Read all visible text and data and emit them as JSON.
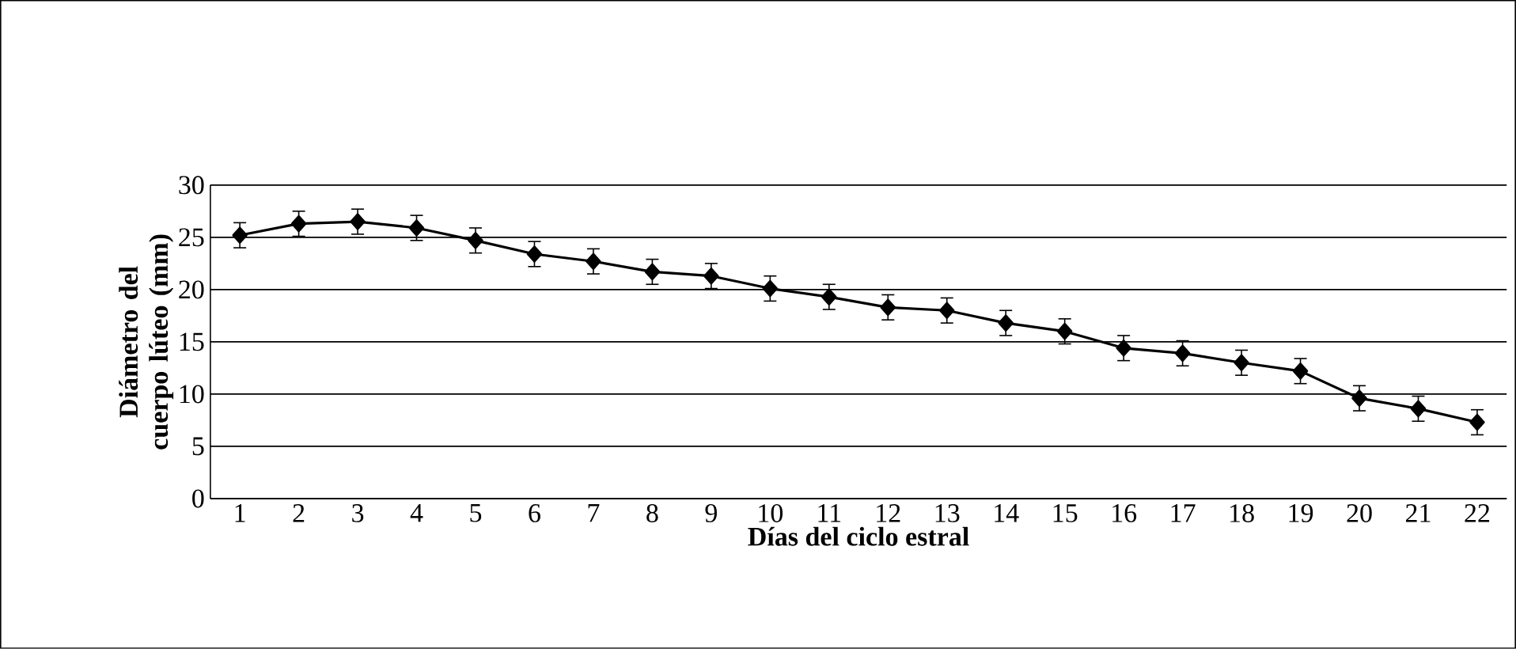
{
  "chart_data": {
    "type": "line",
    "xlabel": "Días del ciclo estral",
    "ylabel": "Diámetro del cuerpo lúteo (mm)",
    "categories": [
      "1",
      "2",
      "3",
      "4",
      "5",
      "6",
      "7",
      "8",
      "9",
      "10",
      "11",
      "12",
      "13",
      "14",
      "15",
      "16",
      "17",
      "18",
      "19",
      "20",
      "21",
      "22"
    ],
    "values": [
      25.2,
      26.3,
      26.5,
      25.9,
      24.7,
      23.4,
      22.7,
      21.7,
      21.3,
      20.1,
      19.3,
      18.3,
      18.0,
      16.8,
      16.0,
      14.4,
      13.9,
      13.0,
      12.2,
      9.6,
      8.6,
      7.3
    ],
    "errors": [
      1.2,
      1.2,
      1.2,
      1.2,
      1.2,
      1.2,
      1.2,
      1.2,
      1.2,
      1.2,
      1.2,
      1.2,
      1.2,
      1.2,
      1.2,
      1.2,
      1.2,
      1.2,
      1.2,
      1.2,
      1.2,
      1.2
    ],
    "color": "#000000",
    "marker": "diamond",
    "line_style": "solid",
    "ylim": [
      0,
      30
    ],
    "yticks": [
      0,
      5,
      10,
      15,
      20,
      25,
      30
    ],
    "grid": "y"
  }
}
